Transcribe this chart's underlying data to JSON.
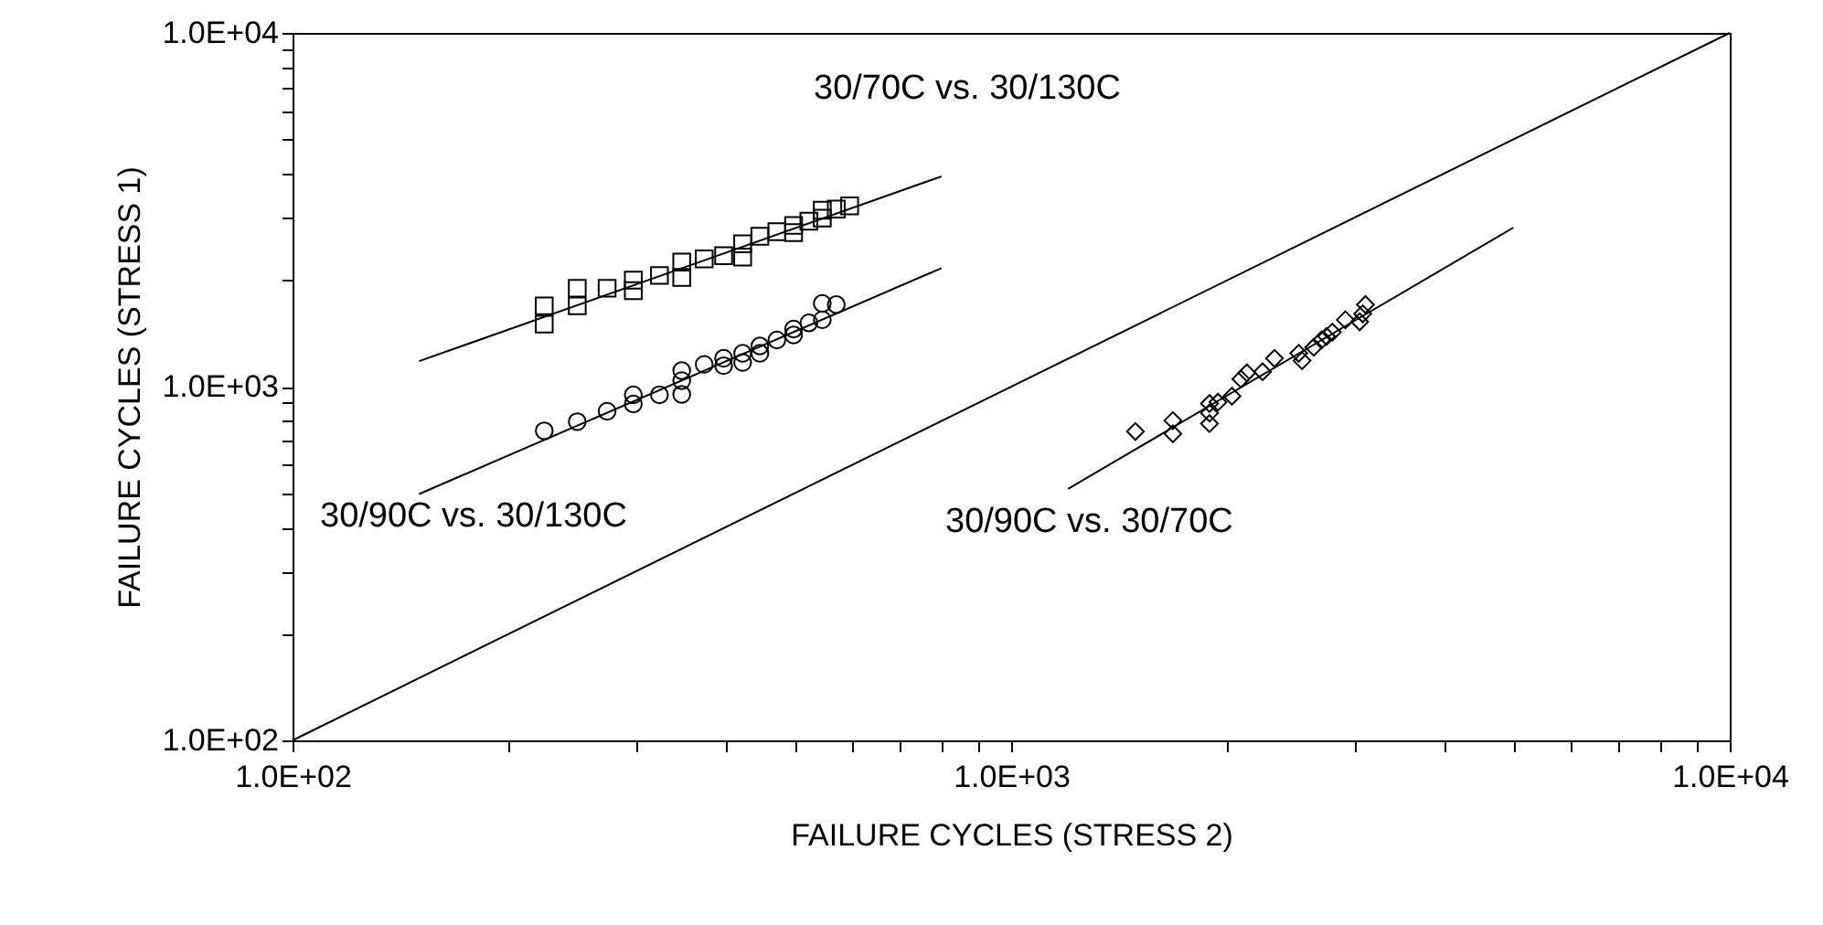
{
  "chart_data": {
    "type": "scatter",
    "xlabel": "FAILURE CYCLES (STRESS 2)",
    "ylabel": "FAILURE CYCLES (STRESS 1)",
    "log": "xy",
    "grid": false,
    "xlim": [
      100,
      10000
    ],
    "ylim": [
      100,
      10000
    ],
    "xticks": [
      {
        "value": 100,
        "label": "1.0E+02"
      },
      {
        "value": 200,
        "label": null
      },
      {
        "value": 300,
        "label": null
      },
      {
        "value": 400,
        "label": null
      },
      {
        "value": 500,
        "label": null
      },
      {
        "value": 600,
        "label": null
      },
      {
        "value": 700,
        "label": null
      },
      {
        "value": 800,
        "label": null
      },
      {
        "value": 900,
        "label": null
      },
      {
        "value": 1000,
        "label": "1.0E+03"
      },
      {
        "value": 2000,
        "label": null
      },
      {
        "value": 3000,
        "label": null
      },
      {
        "value": 4000,
        "label": null
      },
      {
        "value": 5000,
        "label": null
      },
      {
        "value": 6000,
        "label": null
      },
      {
        "value": 7000,
        "label": null
      },
      {
        "value": 8000,
        "label": null
      },
      {
        "value": 9000,
        "label": null
      },
      {
        "value": 10000,
        "label": "1.0E+04"
      }
    ],
    "yticks": [
      {
        "value": 100,
        "label": "1.0E+02"
      },
      {
        "value": 200,
        "label": null
      },
      {
        "value": 300,
        "label": null
      },
      {
        "value": 400,
        "label": null
      },
      {
        "value": 500,
        "label": null
      },
      {
        "value": 600,
        "label": null
      },
      {
        "value": 700,
        "label": null
      },
      {
        "value": 800,
        "label": null
      },
      {
        "value": 900,
        "label": null
      },
      {
        "value": 1000,
        "label": "1.0E+03"
      },
      {
        "value": 2000,
        "label": null
      },
      {
        "value": 3000,
        "label": null
      },
      {
        "value": 4000,
        "label": null
      },
      {
        "value": 5000,
        "label": null
      },
      {
        "value": 6000,
        "label": null
      },
      {
        "value": 7000,
        "label": null
      },
      {
        "value": 8000,
        "label": null
      },
      {
        "value": 9000,
        "label": null
      },
      {
        "value": 10000,
        "label": "1.0E+04"
      }
    ],
    "series": [
      {
        "marker": "square",
        "color": "#000000",
        "x": [
          224,
          224,
          249,
          249,
          274,
          298,
          298,
          324,
          348,
          348,
          374,
          398,
          423,
          423,
          447,
          472,
          498,
          498,
          523,
          546,
          546,
          571,
          596
        ],
        "values": [
          1692,
          1502,
          1897,
          1692,
          1897,
          2000,
          1868,
          2062,
          2250,
          2037,
          2296,
          2344,
          2535,
          2323,
          2660,
          2743,
          2856,
          2724,
          2937,
          3152,
          2995,
          3178,
          3243
        ]
      },
      {
        "marker": "circle",
        "color": "#000000",
        "x": [
          224,
          249,
          274,
          298,
          298,
          324,
          348,
          348,
          348,
          374,
          398,
          398,
          423,
          423,
          447,
          447,
          472,
          498,
          498,
          523,
          546,
          546,
          571
        ],
        "values": [
          750,
          796,
          852,
          948,
          893,
          948,
          1110,
          1040,
          951,
          1156,
          1202,
          1146,
          1242,
          1170,
          1303,
          1242,
          1355,
          1455,
          1400,
          1514,
          1718,
          1545,
          1706
        ]
      },
      {
        "marker": "diamond",
        "color": "#000000",
        "x": [
          1489,
          1679,
          1679,
          1888,
          1888,
          1888,
          1940,
          2029,
          2088,
          2128,
          2238,
          2325,
          2513,
          2540,
          2637,
          2704,
          2747,
          2799,
          2918,
          3055,
          3085,
          3112
        ],
        "values": [
          747,
          802,
          736,
          896,
          842,
          786,
          904,
          940,
          1051,
          1094,
          1102,
          1202,
          1242,
          1184,
          1292,
          1355,
          1387,
          1426,
          1545,
          1525,
          1607,
          1706
        ]
      },
      {
        "type": "line",
        "line_style": "solid",
        "color": "#000000",
        "x": [
          150,
          800
        ],
        "values": [
          1180,
          3930
        ]
      },
      {
        "type": "line",
        "line_style": "solid",
        "color": "#000000",
        "x": [
          150,
          800
        ],
        "values": [
          497,
          2163
        ]
      },
      {
        "type": "line",
        "line_style": "solid",
        "color": "#000000",
        "x": [
          1200,
          5000
        ],
        "values": [
          514,
          2816
        ]
      },
      {
        "type": "line",
        "line_style": "solid",
        "color": "#000000",
        "x": [
          100,
          10000
        ],
        "values": [
          100,
          10000
        ]
      }
    ],
    "annotations": [
      "30/70C vs. 30/130C",
      "30/90C vs. 30/130C",
      "30/90C vs. 30/70C"
    ]
  }
}
